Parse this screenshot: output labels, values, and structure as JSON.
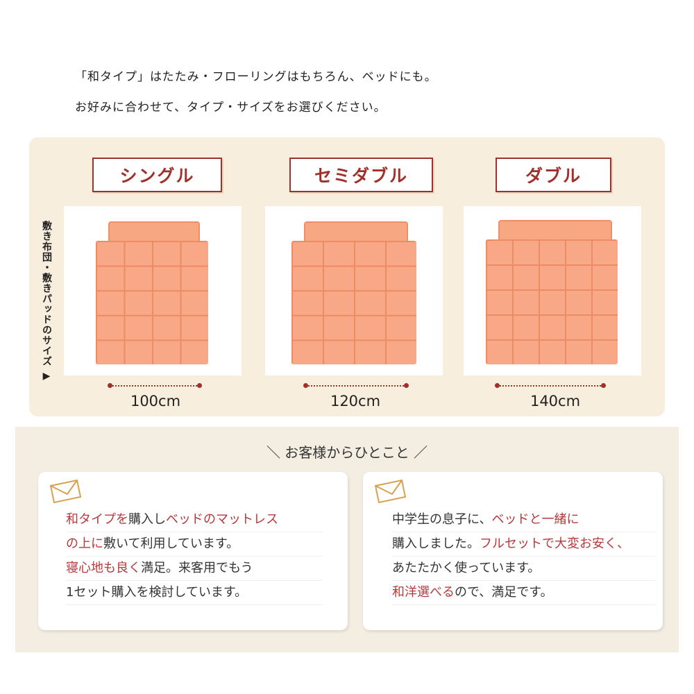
{
  "intro": [
    "「和タイプ」はたたみ・フローリングはもちろん、ベッドにも。",
    "お好みに合わせて、タイプ・サイズをお選びください。"
  ],
  "side_label": "敷き布団・敷きパッドのサイズ ▶",
  "sizes": [
    {
      "title": "シングル",
      "width": "100cm"
    },
    {
      "title": "セミダブル",
      "width": "120cm"
    },
    {
      "title": "ダブル",
      "width": "140cm"
    }
  ],
  "colors": {
    "accent": "#a0302a",
    "mattress": "#f9a887",
    "panel": "#f8eedd"
  },
  "reviews_heading": "＼ お客様からひとこと ／",
  "reviews": [
    {
      "icon": "envelope-icon",
      "lines": [
        [
          {
            "t": "和タイプを",
            "r": true
          },
          {
            "t": "購入し",
            "r": false
          },
          {
            "t": "ベッドのマットレス",
            "r": true
          }
        ],
        [
          {
            "t": "の上に",
            "r": true
          },
          {
            "t": "敷いて利用しています。",
            "r": false
          }
        ],
        [
          {
            "t": "寝心地も良く",
            "r": true
          },
          {
            "t": "満足。来客用でもう",
            "r": false
          }
        ],
        [
          {
            "t": "1セット購入を検討しています。",
            "r": false
          }
        ]
      ]
    },
    {
      "icon": "envelope-icon",
      "lines": [
        [
          {
            "t": "中学生の息子に、",
            "r": false
          },
          {
            "t": "ベッドと一緒に",
            "r": true
          }
        ],
        [
          {
            "t": "購入しました。",
            "r": false
          },
          {
            "t": "フルセットで大変お安く、",
            "r": true
          }
        ],
        [
          {
            "t": "あたたかく使っています。",
            "r": false
          }
        ],
        [
          {
            "t": "和洋選べる",
            "r": true
          },
          {
            "t": "ので、満足です。",
            "r": false
          }
        ]
      ]
    }
  ]
}
